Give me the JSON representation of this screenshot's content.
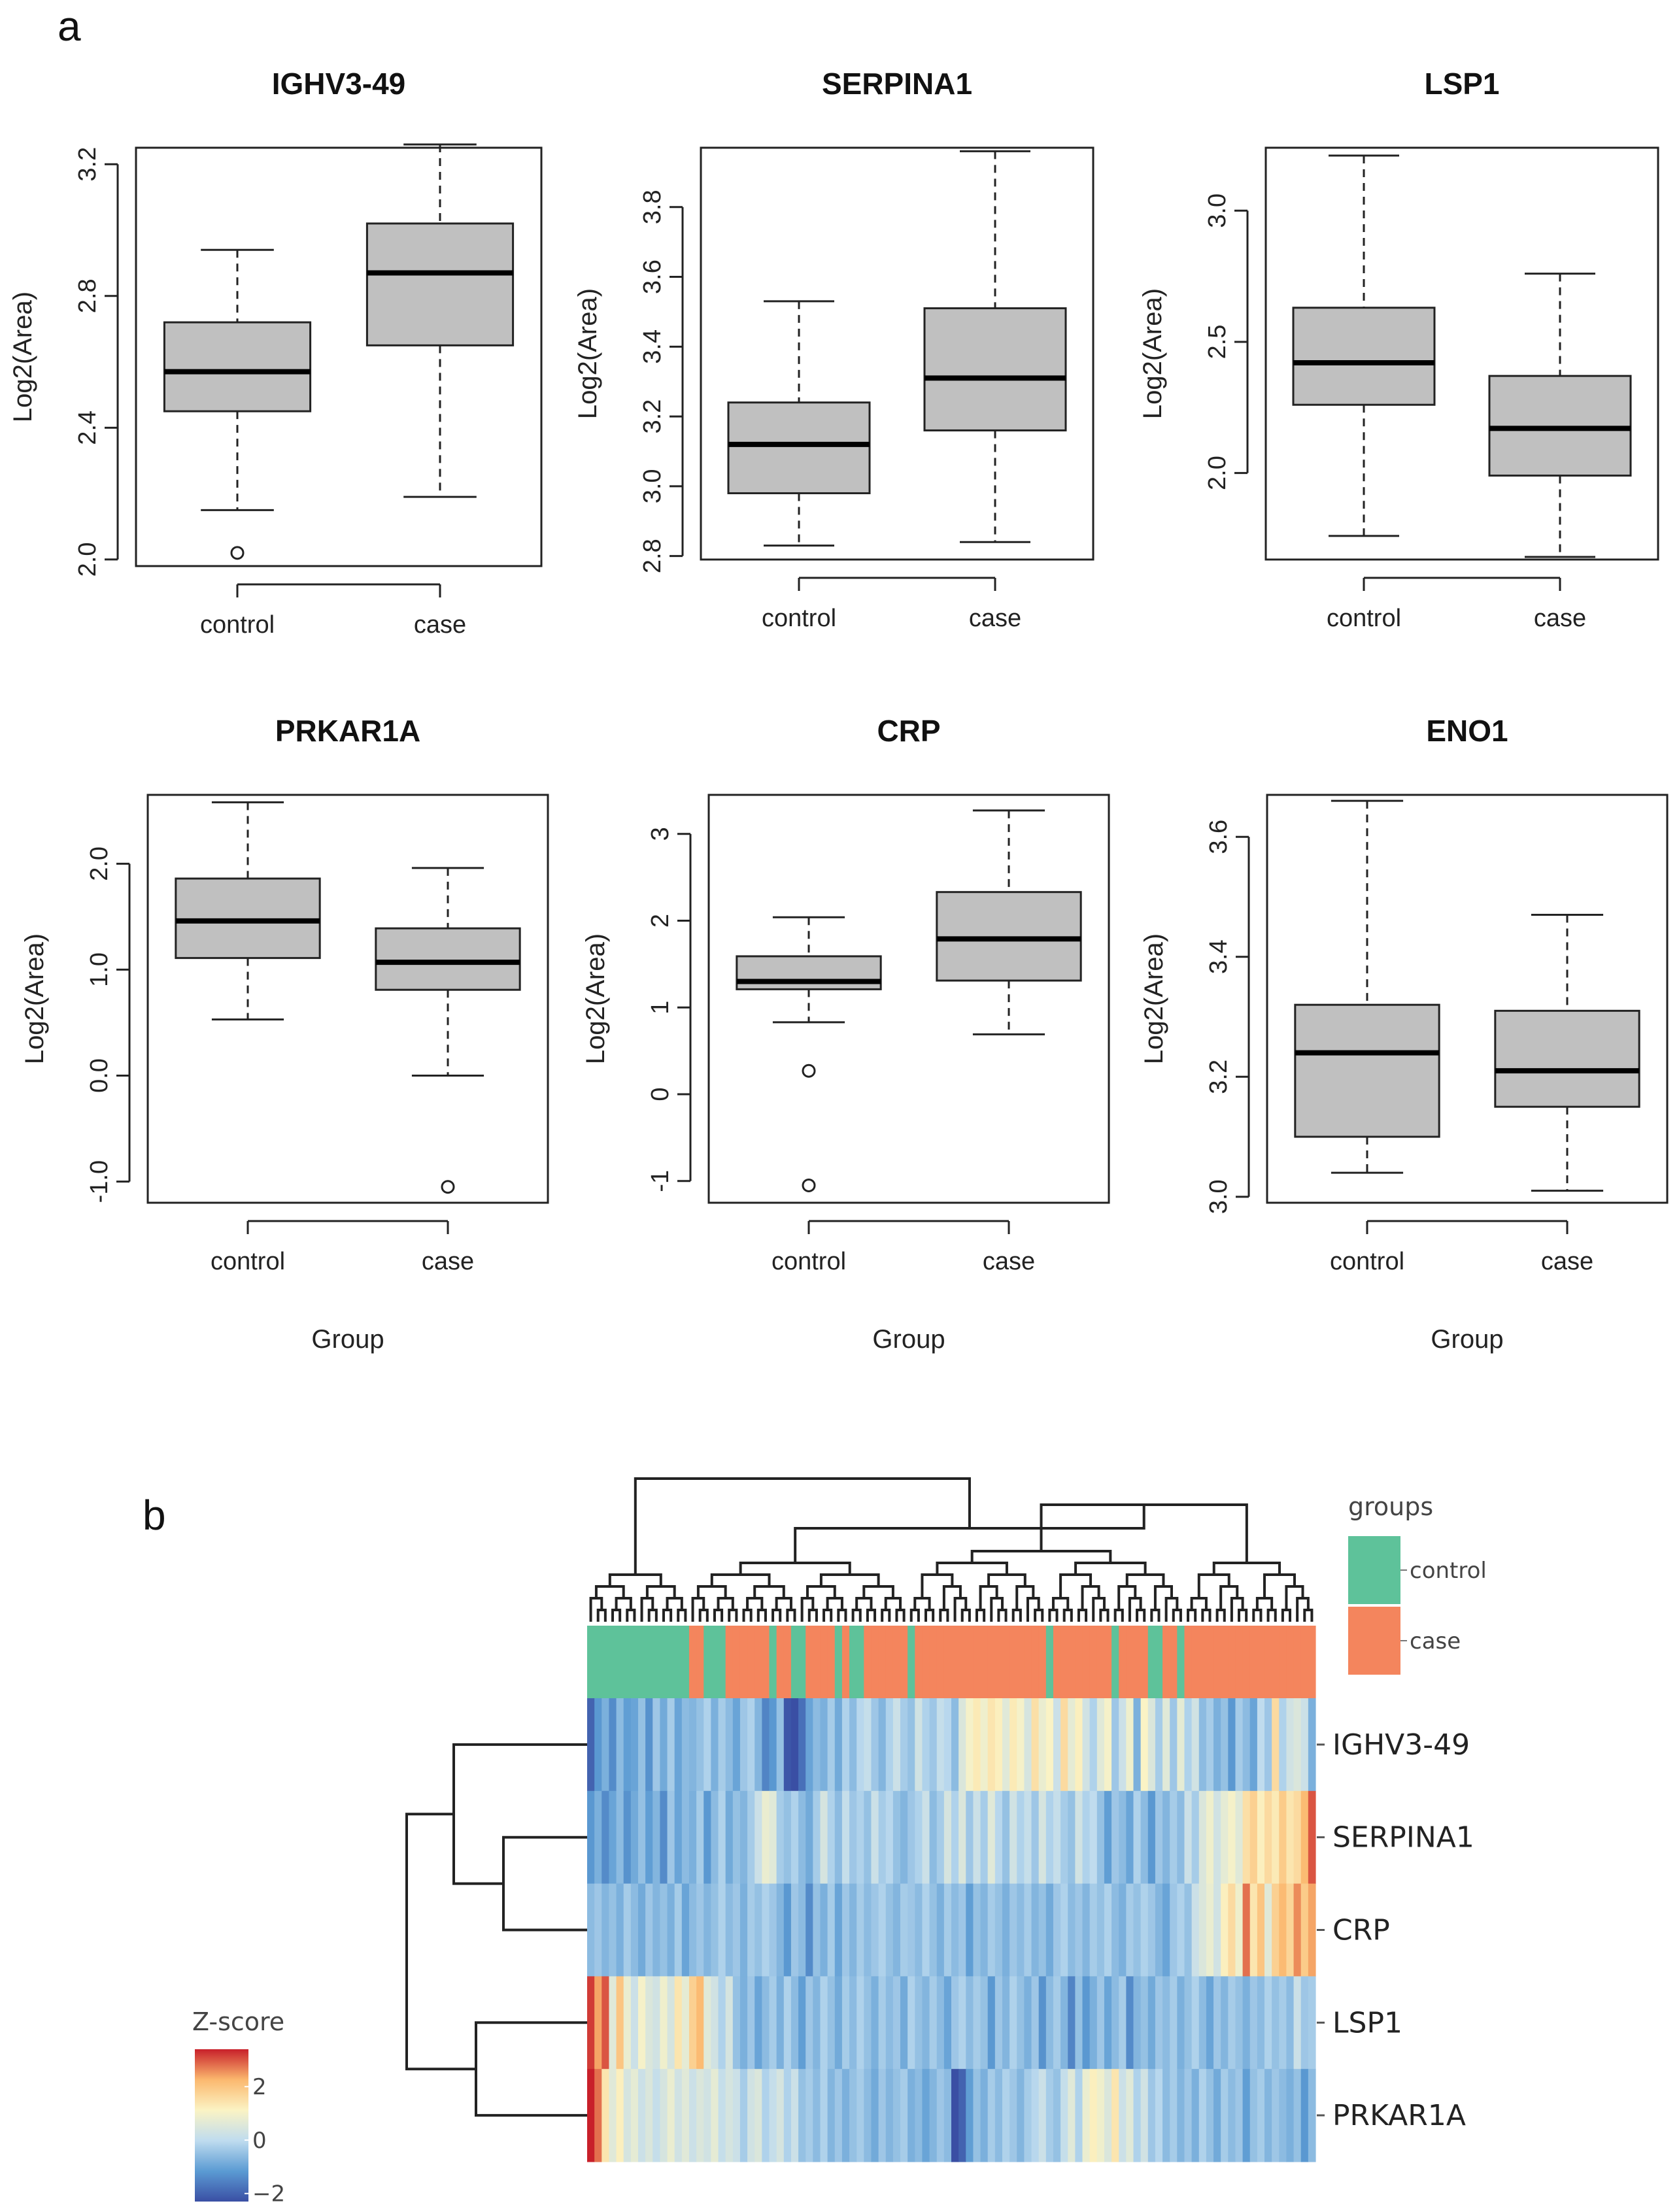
{
  "panels": {
    "a": "a",
    "b": "b"
  },
  "chart_data": [
    {
      "type": "boxplot",
      "title": "IGHV3-49",
      "ylabel": "Log2(Area)",
      "xlabel": "",
      "categories": [
        "control",
        "case"
      ],
      "ylim": [
        1.98,
        3.25
      ],
      "yticks": [
        2.0,
        2.4,
        2.8,
        3.2
      ],
      "ytick_labels": [
        "2.0",
        "2.4",
        "2.8",
        "3.2"
      ],
      "boxes": [
        {
          "group": "control",
          "min": 2.15,
          "q1": 2.45,
          "median": 2.57,
          "q3": 2.72,
          "max": 2.94,
          "outliers": [
            2.02
          ]
        },
        {
          "group": "case",
          "min": 2.19,
          "q1": 2.65,
          "median": 2.87,
          "q3": 3.02,
          "max": 3.26,
          "outliers": []
        }
      ]
    },
    {
      "type": "boxplot",
      "title": "SERPINA1",
      "ylabel": "Log2(Area)",
      "xlabel": "",
      "categories": [
        "control",
        "case"
      ],
      "ylim": [
        2.79,
        3.97
      ],
      "yticks": [
        2.8,
        3.0,
        3.2,
        3.4,
        3.6,
        3.8
      ],
      "ytick_labels": [
        "2.8",
        "3.0",
        "3.2",
        "3.4",
        "3.6",
        "3.8"
      ],
      "boxes": [
        {
          "group": "control",
          "min": 2.83,
          "q1": 2.98,
          "median": 3.12,
          "q3": 3.24,
          "max": 3.53,
          "outliers": []
        },
        {
          "group": "case",
          "min": 2.84,
          "q1": 3.16,
          "median": 3.31,
          "q3": 3.51,
          "max": 3.96,
          "outliers": []
        }
      ]
    },
    {
      "type": "boxplot",
      "title": "LSP1",
      "ylabel": "Log2(Area)",
      "xlabel": "",
      "categories": [
        "control",
        "case"
      ],
      "ylim": [
        1.67,
        3.24
      ],
      "yticks": [
        2.0,
        2.5,
        3.0
      ],
      "ytick_labels": [
        "2.0",
        "2.5",
        "3.0"
      ],
      "boxes": [
        {
          "group": "control",
          "min": 1.76,
          "q1": 2.26,
          "median": 2.42,
          "q3": 2.63,
          "max": 3.21,
          "outliers": []
        },
        {
          "group": "case",
          "min": 1.68,
          "q1": 1.99,
          "median": 2.17,
          "q3": 2.37,
          "max": 2.76,
          "outliers": []
        }
      ]
    },
    {
      "type": "boxplot",
      "title": "PRKAR1A",
      "ylabel": "Log2(Area)",
      "xlabel": "Group",
      "categories": [
        "control",
        "case"
      ],
      "ylim": [
        -1.2,
        2.65
      ],
      "yticks": [
        -1.0,
        0.0,
        1.0,
        2.0
      ],
      "ytick_labels": [
        "-1.0",
        "0.0",
        "1.0",
        "2.0"
      ],
      "boxes": [
        {
          "group": "control",
          "min": 0.53,
          "q1": 1.11,
          "median": 1.46,
          "q3": 1.86,
          "max": 2.58,
          "outliers": []
        },
        {
          "group": "case",
          "min": 0.0,
          "q1": 0.81,
          "median": 1.07,
          "q3": 1.39,
          "max": 1.96,
          "outliers": [
            -1.05
          ]
        }
      ]
    },
    {
      "type": "boxplot",
      "title": "CRP",
      "ylabel": "Log2(Area)",
      "xlabel": "Group",
      "categories": [
        "control",
        "case"
      ],
      "ylim": [
        -1.25,
        3.45
      ],
      "yticks": [
        -1,
        0,
        1,
        2,
        3
      ],
      "ytick_labels": [
        "-1",
        "0",
        "1",
        "2",
        "3"
      ],
      "boxes": [
        {
          "group": "control",
          "min": 0.83,
          "q1": 1.21,
          "median": 1.3,
          "q3": 1.59,
          "max": 2.04,
          "outliers": [
            0.27,
            -1.05
          ]
        },
        {
          "group": "case",
          "min": 0.69,
          "q1": 1.31,
          "median": 1.79,
          "q3": 2.33,
          "max": 3.27,
          "outliers": []
        }
      ]
    },
    {
      "type": "boxplot",
      "title": "ENO1",
      "ylabel": "Log2(Area)",
      "xlabel": "Group",
      "categories": [
        "control",
        "case"
      ],
      "ylim": [
        2.99,
        3.67
      ],
      "yticks": [
        3.0,
        3.2,
        3.4,
        3.6
      ],
      "ytick_labels": [
        "3.0",
        "3.2",
        "3.4",
        "3.6"
      ],
      "boxes": [
        {
          "group": "control",
          "min": 3.04,
          "q1": 3.1,
          "median": 3.24,
          "q3": 3.32,
          "max": 3.66,
          "outliers": []
        },
        {
          "group": "case",
          "min": 3.01,
          "q1": 3.15,
          "median": 3.21,
          "q3": 3.31,
          "max": 3.47,
          "outliers": []
        }
      ]
    },
    {
      "type": "heatmap",
      "rows": [
        "IGHV3-49",
        "SERPINA1",
        "CRP",
        "LSP1",
        "PRKAR1A"
      ],
      "groups_legend_title": "groups",
      "groups": [
        "control",
        "case"
      ],
      "group_colors": {
        "control": "#5ec29a",
        "case": "#f4855d"
      },
      "legend_title": "Z-score",
      "legend_ticks": [
        2,
        0,
        -2
      ],
      "legend_tick_labels": [
        "2",
        "0",
        "−2"
      ],
      "legend_range": [
        -2.3,
        3.4
      ],
      "colors": [
        "#3a4fa4",
        "#5b9bd3",
        "#bfdcef",
        "#fbf3c4",
        "#fbb86e",
        "#c8202a"
      ],
      "column_groups": [
        "control",
        "control",
        "control",
        "control",
        "control",
        "control",
        "control",
        "control",
        "control",
        "control",
        "control",
        "control",
        "control",
        "control",
        "case",
        "case",
        "control",
        "control",
        "control",
        "case",
        "case",
        "case",
        "case",
        "case",
        "case",
        "control",
        "case",
        "case",
        "control",
        "control",
        "case",
        "case",
        "case",
        "case",
        "control",
        "case",
        "control",
        "control",
        "case",
        "case",
        "case",
        "case",
        "case",
        "case",
        "control",
        "case",
        "case",
        "case",
        "case",
        "case",
        "case",
        "case",
        "case",
        "case",
        "case",
        "case",
        "case",
        "case",
        "case",
        "case",
        "case",
        "case",
        "case",
        "control",
        "case",
        "case",
        "case",
        "case",
        "case",
        "case",
        "case",
        "case",
        "control",
        "case",
        "case",
        "case",
        "case",
        "control",
        "control",
        "case",
        "case",
        "control",
        "case",
        "case",
        "case",
        "case",
        "case",
        "case",
        "case",
        "case",
        "case",
        "case",
        "case",
        "case",
        "case",
        "case",
        "case",
        "case",
        "case",
        "case"
      ],
      "values": [
        [
          -2.0,
          -1.2,
          -0.8,
          -1.4,
          -0.6,
          -1.1,
          -1.0,
          -0.5,
          -1.3,
          -0.4,
          -0.9,
          -0.3,
          -1.0,
          -0.6,
          -0.7,
          -0.5,
          -0.2,
          -0.8,
          -0.3,
          -0.6,
          -1.0,
          -0.4,
          -0.2,
          -0.7,
          -1.5,
          -1.2,
          -0.5,
          -2.2,
          -2.3,
          -1.8,
          -1.0,
          -0.6,
          -0.8,
          -0.3,
          -0.9,
          -0.2,
          -0.6,
          -0.1,
          0.1,
          -0.4,
          -0.7,
          -0.2,
          0.2,
          -0.3,
          -0.5,
          0.3,
          -0.2,
          -0.4,
          0.1,
          -0.1,
          -0.6,
          0.5,
          1.0,
          1.3,
          0.9,
          1.4,
          1.2,
          0.6,
          1.3,
          1.0,
          0.4,
          1.5,
          0.8,
          1.1,
          0.2,
          1.6,
          0.7,
          1.2,
          0.3,
          -0.2,
          0.6,
          1.0,
          -0.4,
          0.2,
          0.9,
          -0.8,
          1.1,
          0.5,
          -0.3,
          0.6,
          -0.4,
          0.7,
          -0.2,
          0.3,
          -0.6,
          -0.3,
          -0.8,
          -0.5,
          -1.2,
          -0.3,
          -0.6,
          -1.0,
          0.0,
          -0.4,
          1.6,
          -0.2,
          0.3,
          0.5,
          0.2,
          -0.8
        ],
        [
          -1.2,
          -0.8,
          -1.4,
          -1.0,
          -0.6,
          -1.3,
          -0.9,
          -0.5,
          -1.1,
          -0.7,
          -1.4,
          -0.4,
          -1.0,
          -0.6,
          -0.8,
          -0.3,
          -1.2,
          -0.6,
          -0.2,
          -0.9,
          -0.5,
          -0.7,
          -0.3,
          0.2,
          0.8,
          0.6,
          -0.3,
          -0.5,
          -0.2,
          -0.6,
          -0.9,
          -0.3,
          0.4,
          -0.2,
          -0.6,
          0.1,
          -0.4,
          -0.2,
          -0.5,
          0.2,
          -0.3,
          -0.1,
          -0.5,
          -0.7,
          -0.4,
          -0.2,
          0.2,
          -0.6,
          -0.3,
          0.4,
          -0.2,
          0.5,
          -0.4,
          0.2,
          -0.3,
          0.6,
          -0.1,
          -0.5,
          0.3,
          -0.2,
          0.1,
          -0.4,
          0.4,
          -0.2,
          0.1,
          -0.3,
          -0.5,
          0.3,
          -0.2,
          0.0,
          -0.5,
          -1.1,
          -0.4,
          -0.6,
          -1.0,
          -0.2,
          -0.6,
          -1.2,
          -0.4,
          -0.7,
          -0.3,
          -0.6,
          0.2,
          -0.3,
          0.5,
          0.9,
          0.3,
          0.7,
          1.0,
          0.6,
          1.5,
          1.8,
          1.2,
          1.6,
          1.3,
          1.9,
          1.4,
          1.6,
          2.2,
          3.0
        ],
        [
          -0.6,
          -0.4,
          -0.7,
          -0.5,
          -0.8,
          -0.3,
          -0.6,
          -0.9,
          -0.4,
          -0.7,
          -0.5,
          -0.8,
          -0.3,
          -1.0,
          -0.6,
          -0.4,
          -0.7,
          -0.5,
          -0.2,
          -0.6,
          -0.4,
          -0.8,
          -0.3,
          -0.5,
          -0.2,
          -0.4,
          -0.7,
          -1.2,
          -0.4,
          -0.6,
          -1.4,
          -0.5,
          -0.8,
          -0.3,
          -1.0,
          -0.4,
          -0.7,
          -0.3,
          -0.6,
          -0.4,
          -0.2,
          -0.5,
          -0.7,
          -0.3,
          -0.4,
          -0.6,
          -0.2,
          -0.5,
          -0.8,
          -0.3,
          -0.6,
          -0.4,
          -1.1,
          -0.5,
          -0.7,
          -0.3,
          -0.5,
          -0.8,
          -0.4,
          -0.6,
          -0.3,
          -0.7,
          -0.5,
          -0.9,
          -0.4,
          -0.2,
          -0.6,
          -0.4,
          -0.7,
          -0.3,
          -0.5,
          -0.2,
          -0.6,
          -0.8,
          -0.3,
          -0.5,
          -0.2,
          -0.4,
          -0.7,
          -1.0,
          -0.4,
          -0.2,
          -0.5,
          0.2,
          0.5,
          0.8,
          0.3,
          1.2,
          1.6,
          0.9,
          2.8,
          1.4,
          2.0,
          0.6,
          1.8,
          2.2,
          1.7,
          2.6,
          1.9,
          2.4
        ],
        [
          3.2,
          2.4,
          3.0,
          0.6,
          2.0,
          0.8,
          0.2,
          1.0,
          0.5,
          0.3,
          0.9,
          0.4,
          1.4,
          0.7,
          1.8,
          2.2,
          0.6,
          0.3,
          -0.2,
          0.4,
          -0.5,
          -0.8,
          -0.4,
          -1.0,
          -0.6,
          -0.3,
          -0.8,
          -0.2,
          -0.6,
          -1.1,
          -0.4,
          -0.7,
          -0.2,
          -0.5,
          -0.9,
          -0.3,
          -0.6,
          -0.2,
          -0.5,
          -0.8,
          -0.3,
          -0.6,
          -0.4,
          -0.9,
          -0.2,
          -0.5,
          -0.7,
          -0.3,
          -0.6,
          -1.0,
          -0.4,
          -0.2,
          -0.6,
          -0.3,
          -0.5,
          -1.2,
          -0.4,
          -0.7,
          -0.2,
          -0.5,
          -0.8,
          -0.4,
          -1.3,
          -0.6,
          -0.3,
          -0.7,
          -1.5,
          -0.5,
          -1.2,
          -0.8,
          -0.4,
          -1.0,
          -0.6,
          -0.3,
          -1.4,
          -0.7,
          -0.5,
          -0.9,
          -0.4,
          -0.6,
          -0.3,
          -0.8,
          -0.5,
          -0.2,
          -0.6,
          -1.0,
          -0.4,
          -0.7,
          -0.3,
          -0.5,
          -0.8,
          -0.4,
          -0.6,
          -0.2,
          -0.5,
          -0.3,
          -0.6,
          0.2,
          -0.4,
          -0.3
        ],
        [
          3.4,
          2.8,
          1.4,
          0.6,
          1.2,
          0.4,
          0.7,
          0.2,
          0.5,
          0.1,
          0.4,
          0.8,
          0.3,
          0.6,
          0.2,
          0.5,
          0.3,
          0.7,
          0.1,
          0.4,
          0.2,
          -0.3,
          0.3,
          0.5,
          -0.2,
          0.1,
          0.4,
          -0.2,
          0.2,
          -0.5,
          -0.3,
          -0.6,
          -0.2,
          -0.7,
          -0.4,
          -0.8,
          -0.5,
          -0.3,
          -0.6,
          -0.9,
          -0.4,
          -0.7,
          -0.5,
          -0.3,
          -0.8,
          -0.6,
          -1.0,
          -0.7,
          -0.4,
          -0.6,
          -2.3,
          -2.0,
          -1.1,
          -0.5,
          -0.8,
          -0.3,
          -0.6,
          -0.2,
          -0.4,
          -0.7,
          -0.3,
          -0.1,
          0.2,
          -0.3,
          -0.5,
          0.1,
          0.6,
          -0.2,
          0.8,
          1.2,
          0.9,
          0.5,
          1.4,
          0.2,
          0.6,
          -0.2,
          0.3,
          -0.4,
          -0.1,
          -0.6,
          -0.3,
          -0.7,
          -0.4,
          -0.8,
          -0.2,
          -0.5,
          -0.9,
          -0.3,
          -0.6,
          -0.4,
          -1.1,
          -0.5,
          -0.3,
          -0.7,
          -0.4,
          -0.6,
          -0.8,
          -0.5,
          -1.2,
          -0.6
        ]
      ]
    }
  ]
}
